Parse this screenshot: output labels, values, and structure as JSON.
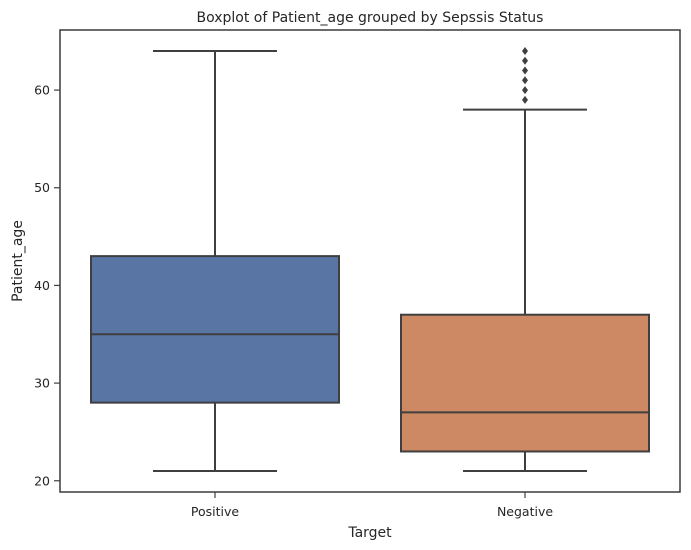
{
  "chart_data": {
    "type": "boxplot",
    "title": "Boxplot of Patient_age grouped by Sepssis Status",
    "xlabel": "Target",
    "ylabel": "Patient_age",
    "ylim": [
      18.85,
      66.15
    ],
    "yticks": [
      20,
      30,
      40,
      50,
      60
    ],
    "grid": false,
    "series": [
      {
        "category": "Positive",
        "color": "#5875a4",
        "whisker_low": 21,
        "q1": 28,
        "median": 35,
        "q3": 43,
        "whisker_high": 64,
        "outliers": []
      },
      {
        "category": "Negative",
        "color": "#cc8963",
        "whisker_low": 21,
        "q1": 23,
        "median": 27,
        "q3": 37,
        "whisker_high": 58,
        "outliers": [
          59,
          60,
          61,
          62,
          63,
          64
        ]
      }
    ]
  }
}
